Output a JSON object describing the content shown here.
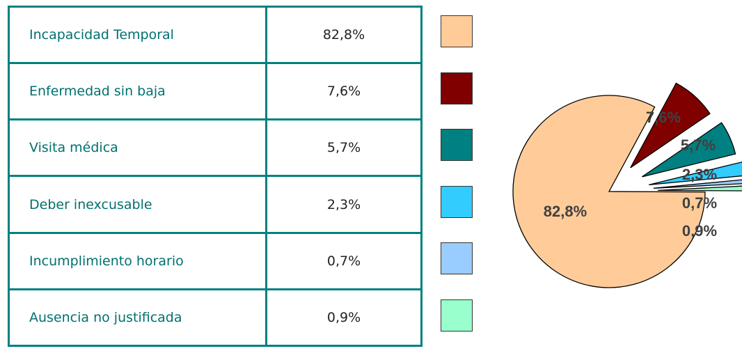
{
  "chart_data": {
    "type": "pie",
    "categories": [
      "Incapacidad Temporal",
      "Enfermedad sin baja",
      "Visita médica",
      "Deber inexcusable",
      "Incumplimiento horario",
      "Ausencia no justificada"
    ],
    "values": [
      82.8,
      7.6,
      5.7,
      2.3,
      0.7,
      0.9
    ],
    "value_labels": [
      "82,8%",
      "7,6%",
      "5,7%",
      "2,3%",
      "0,7%",
      "0,9%"
    ],
    "colors": [
      "#FFCC99",
      "#800000",
      "#008080",
      "#33CCFF",
      "#99CCFF",
      "#99FFCC"
    ]
  }
}
